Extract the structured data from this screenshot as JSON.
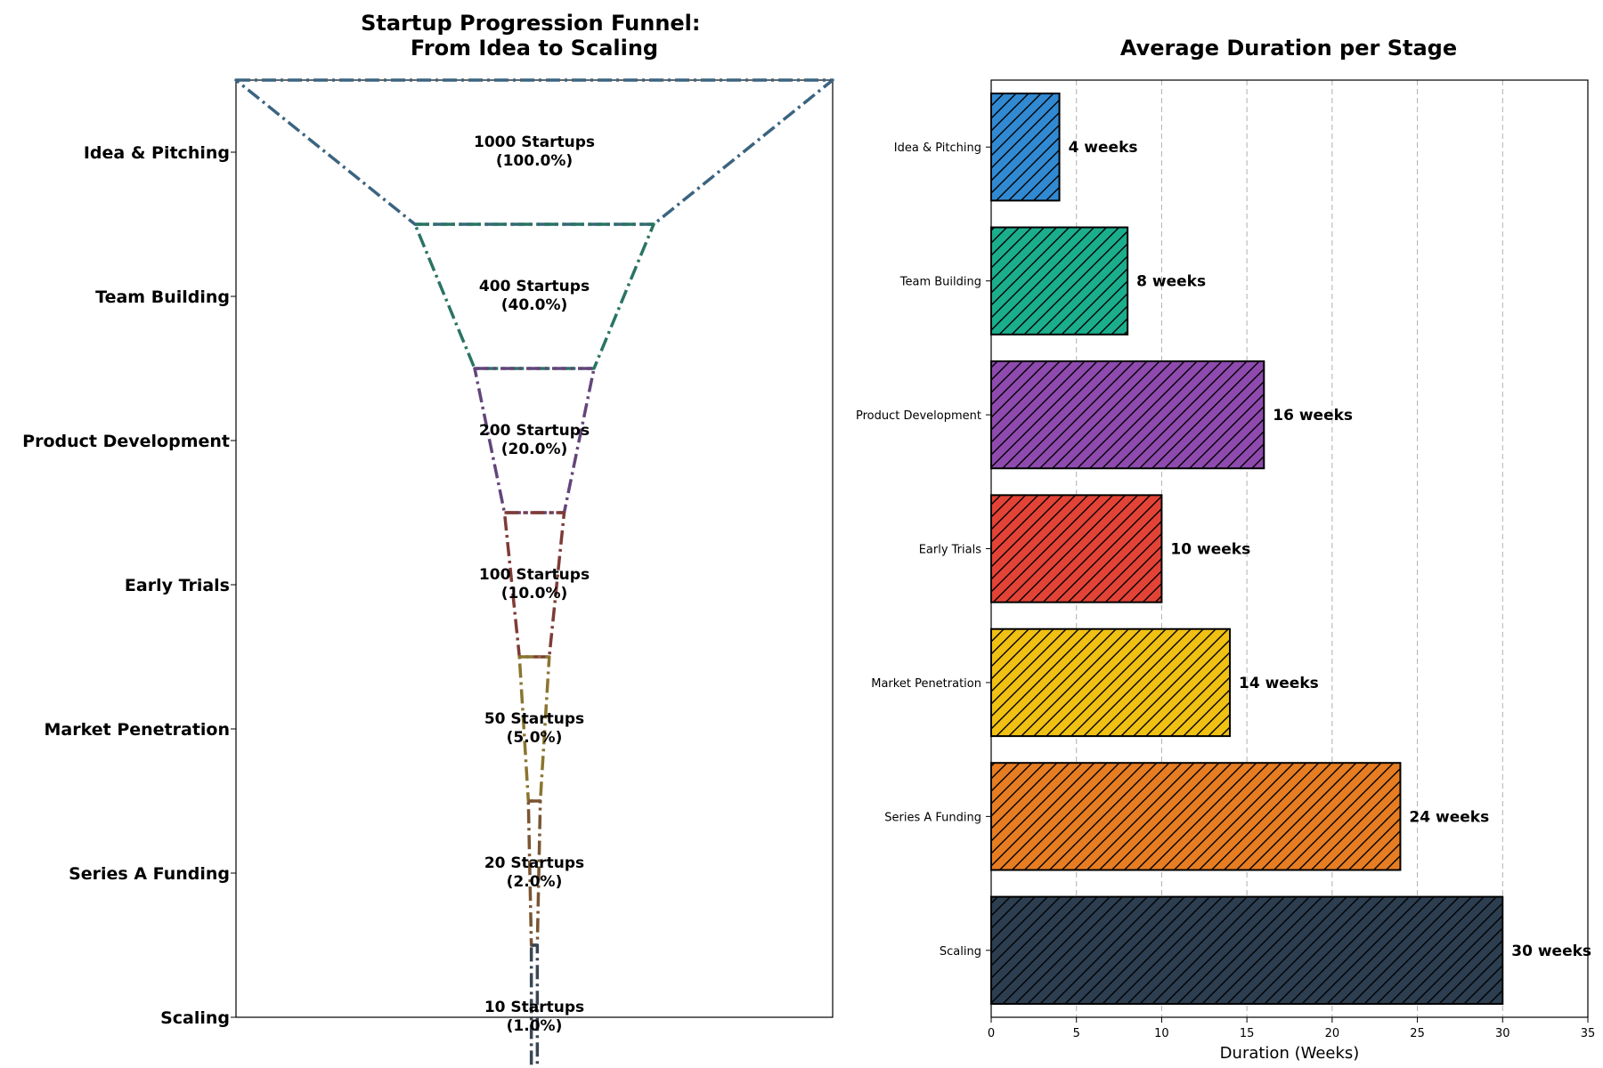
{
  "chart_data": [
    {
      "type": "funnel",
      "title": "Startup Progression Funnel:\nFrom Idea to Scaling",
      "stages": [
        "Idea & Pitching",
        "Team Building",
        "Product Development",
        "Early Trials",
        "Market Penetration",
        "Series A Funding",
        "Scaling"
      ],
      "values": [
        1000,
        400,
        200,
        100,
        50,
        20,
        10
      ],
      "percentages": [
        100.0,
        40.0,
        20.0,
        10.0,
        5.0,
        2.0,
        1.0
      ],
      "value_labels": [
        "1000 Startups",
        "400 Startups",
        "200 Startups",
        "100 Startups",
        "50 Startups",
        "20 Startups",
        "10 Startups"
      ],
      "pct_labels": [
        "(100.0%)",
        "(40.0%)",
        "(20.0%)",
        "(10.0%)",
        "(5.0%)",
        "(2.0%)",
        "(1.0%)"
      ],
      "colors": [
        "#3b6480",
        "#2a7463",
        "#63457a",
        "#7f3b36",
        "#8a7530",
        "#7a5432",
        "#3a4654"
      ],
      "line_style": "dash-dot"
    },
    {
      "type": "bar",
      "orientation": "horizontal",
      "title": "Average Duration per Stage",
      "categories": [
        "Idea & Pitching",
        "Team Building",
        "Product Development",
        "Early Trials",
        "Market Penetration",
        "Series A Funding",
        "Scaling"
      ],
      "values": [
        4,
        8,
        16,
        10,
        14,
        24,
        30
      ],
      "value_labels": [
        "4 weeks",
        "8 weeks",
        "16 weeks",
        "10 weeks",
        "14 weeks",
        "24 weeks",
        "30 weeks"
      ],
      "colors": [
        "#3189d2",
        "#1aae8d",
        "#8e4aae",
        "#e34336",
        "#f0c013",
        "#e67d22",
        "#2c3e50"
      ],
      "hatch": "diagonal",
      "xlabel": "Duration (Weeks)",
      "xlim": [
        0,
        35
      ],
      "xticks": [
        0,
        5,
        10,
        15,
        20,
        25,
        30,
        35
      ],
      "grid": "x-dashed"
    }
  ]
}
